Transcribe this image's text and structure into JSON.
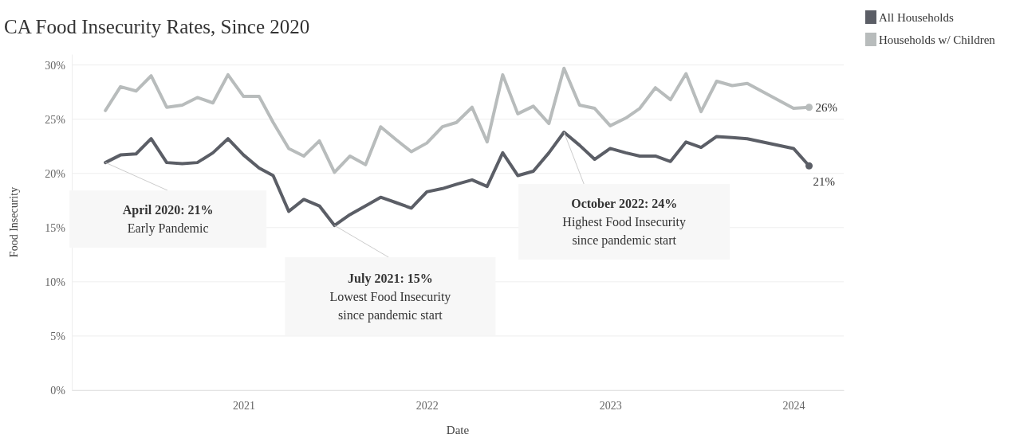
{
  "chart_data": {
    "type": "line",
    "title": "CA Food Insecurity Rates, Since 2020",
    "xlabel": "Date",
    "ylabel": "Food Insecurity",
    "x": [
      "2020-04",
      "2020-05",
      "2020-06",
      "2020-07",
      "2020-08",
      "2020-09",
      "2020-10",
      "2020-11",
      "2020-12",
      "2021-01",
      "2021-02",
      "2021-03",
      "2021-04",
      "2021-05",
      "2021-06",
      "2021-07",
      "2021-08",
      "2021-09",
      "2021-10",
      "2021-11",
      "2021-12",
      "2022-01",
      "2022-02",
      "2022-03",
      "2022-04",
      "2022-05",
      "2022-06",
      "2022-07",
      "2022-08",
      "2022-09",
      "2022-10",
      "2022-11",
      "2022-12",
      "2023-01",
      "2023-02",
      "2023-03",
      "2023-04",
      "2023-05",
      "2023-06",
      "2023-07",
      "2023-08",
      "2023-09",
      "2023-10",
      "2024-01",
      "2024-02"
    ],
    "series": [
      {
        "name": "All Households",
        "color": "#5b5e66",
        "values": [
          21.0,
          21.7,
          21.8,
          23.2,
          21.0,
          20.9,
          21.0,
          21.9,
          23.2,
          21.7,
          20.5,
          19.8,
          16.5,
          17.6,
          17.0,
          15.2,
          16.2,
          17.0,
          17.8,
          17.3,
          16.8,
          18.3,
          18.6,
          19.0,
          19.4,
          18.8,
          21.9,
          19.8,
          20.2,
          21.9,
          23.8,
          22.6,
          21.3,
          22.3,
          21.9,
          21.6,
          21.6,
          21.1,
          22.9,
          22.4,
          23.4,
          23.3,
          23.2,
          22.3,
          20.7
        ],
        "value_labels": [
          null,
          null,
          null,
          null,
          null,
          null,
          null,
          null,
          null,
          null,
          null,
          null,
          null,
          null,
          null,
          null,
          null,
          null,
          null,
          null,
          null,
          null,
          null,
          null,
          null,
          null,
          null,
          null,
          null,
          null,
          null,
          null,
          null,
          null,
          null,
          null,
          null,
          null,
          null,
          null,
          null,
          null,
          null,
          null,
          "21%"
        ]
      },
      {
        "name": "Households w/ Children",
        "color": "#b8bcbc",
        "values": [
          25.8,
          28.0,
          27.6,
          29.0,
          26.1,
          26.3,
          27.0,
          26.5,
          29.1,
          27.1,
          27.1,
          24.7,
          22.3,
          21.6,
          23.0,
          20.1,
          21.6,
          20.8,
          24.3,
          23.1,
          22.0,
          22.8,
          24.3,
          24.7,
          26.1,
          22.9,
          29.1,
          25.5,
          26.2,
          24.6,
          29.7,
          26.3,
          26.0,
          24.4,
          25.1,
          26.0,
          27.9,
          26.8,
          29.2,
          25.7,
          28.5,
          28.1,
          28.3,
          26.0,
          26.1
        ],
        "value_labels": [
          null,
          null,
          null,
          null,
          null,
          null,
          null,
          null,
          null,
          null,
          null,
          null,
          null,
          null,
          null,
          null,
          null,
          null,
          null,
          null,
          null,
          null,
          null,
          null,
          null,
          null,
          null,
          null,
          null,
          null,
          null,
          null,
          null,
          null,
          null,
          null,
          null,
          null,
          null,
          null,
          null,
          null,
          null,
          null,
          "26%"
        ]
      }
    ],
    "xlim": [
      "2020-01-25",
      "2024-04-10"
    ],
    "xticks": [
      {
        "value": "2021-01-01",
        "label": "2021"
      },
      {
        "value": "2022-01-01",
        "label": "2022"
      },
      {
        "value": "2023-01-01",
        "label": "2023"
      },
      {
        "value": "2024-01-01",
        "label": "2024"
      }
    ],
    "ylim": [
      0,
      31
    ],
    "yticks": [
      {
        "value": 0,
        "label": "0%"
      },
      {
        "value": 5,
        "label": "5%"
      },
      {
        "value": 10,
        "label": "10%"
      },
      {
        "value": 15,
        "label": "15%"
      },
      {
        "value": 20,
        "label": "20%"
      },
      {
        "value": 25,
        "label": "25%"
      },
      {
        "value": 30,
        "label": "30%"
      }
    ],
    "grid": "y",
    "legend": "top right",
    "marker": "none",
    "line_style": "solid",
    "annotations": [
      {
        "text": "April 2020: 21%\nEarly Pandemic",
        "x": "2020-04",
        "y": 21.0
      },
      {
        "text": "July 2021: 15%\nLowest Food Insecurity\nsince pandemic start",
        "x": "2021-07",
        "y": 15.2
      },
      {
        "text": "October 2022: 24%\nHighest Food Insecurity\nsince pandemic start",
        "x": "2022-10",
        "y": 23.8
      }
    ]
  }
}
